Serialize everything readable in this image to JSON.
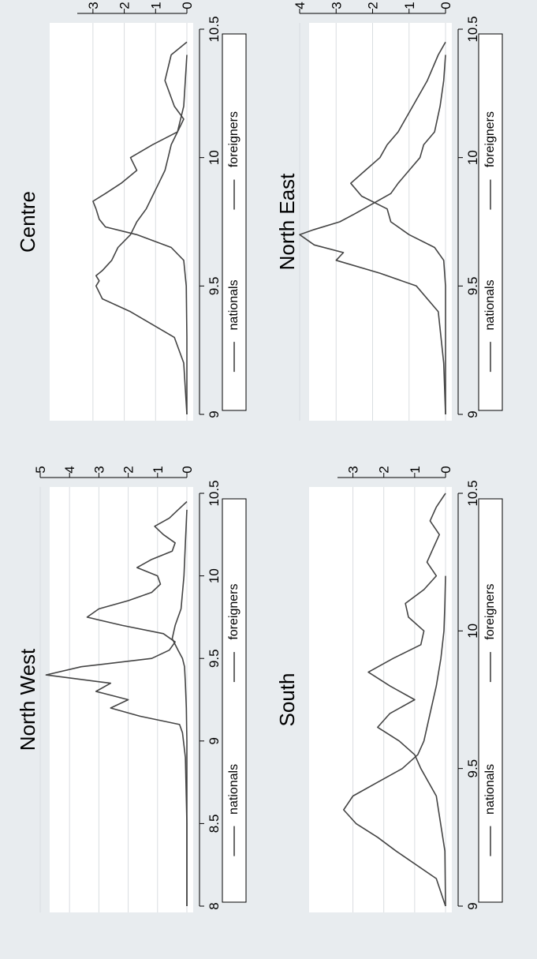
{
  "figure": {
    "orientation": "rotated 90 degrees counter-clockwise",
    "colors": {
      "outer_background": "#e8ecef",
      "plot_background": "#ffffff",
      "gridline": "#d9dde0",
      "line": "#444444"
    }
  },
  "chart_data": [
    {
      "type": "line",
      "title": "North West",
      "xlim": [
        8,
        10.5
      ],
      "ylim": [
        0,
        5
      ],
      "x_ticks": [
        "8",
        "8.5",
        "9",
        "9.5",
        "10",
        "10.5"
      ],
      "y_ticks": [
        "0",
        "1",
        "2",
        "3",
        "4",
        "5"
      ],
      "grid": true,
      "legend": {
        "position": "bottom",
        "entries": [
          "nationals",
          "foreigners"
        ]
      },
      "series": [
        {
          "name": "nationals",
          "x": [
            8.0,
            8.5,
            9.0,
            9.2,
            9.35,
            9.45,
            9.5,
            9.55,
            9.62,
            9.7,
            9.8,
            10.0,
            10.2,
            10.4
          ],
          "y": [
            0.0,
            0.0,
            0.0,
            0.02,
            0.05,
            0.08,
            0.15,
            0.3,
            0.5,
            0.4,
            0.2,
            0.1,
            0.05,
            0.0
          ]
        },
        {
          "name": "foreigners",
          "x": [
            8.0,
            8.5,
            8.9,
            9.05,
            9.1,
            9.15,
            9.2,
            9.25,
            9.3,
            9.35,
            9.4,
            9.45,
            9.5,
            9.55,
            9.6,
            9.65,
            9.7,
            9.75,
            9.8,
            9.85,
            9.9,
            9.95,
            10.0,
            10.05,
            10.1,
            10.15,
            10.2,
            10.25,
            10.3,
            10.35,
            10.4,
            10.45
          ],
          "y": [
            0.0,
            0.0,
            0.05,
            0.15,
            0.25,
            1.6,
            2.6,
            2.0,
            3.1,
            2.6,
            4.8,
            3.6,
            1.2,
            0.6,
            0.4,
            0.8,
            2.2,
            3.4,
            3.0,
            2.0,
            1.2,
            0.9,
            1.0,
            1.7,
            1.2,
            0.5,
            0.4,
            0.8,
            1.1,
            0.6,
            0.3,
            0.0
          ]
        }
      ]
    },
    {
      "type": "line",
      "title": "North East",
      "xlim": [
        9,
        10.5
      ],
      "ylim": [
        0,
        4
      ],
      "x_ticks": [
        "9",
        "9.5",
        "10",
        "10.5"
      ],
      "y_ticks": [
        "0",
        "1",
        "2",
        "3",
        "4"
      ],
      "grid": true,
      "legend": {
        "position": "bottom",
        "entries": [
          "nationals",
          "foreigners"
        ]
      },
      "series": [
        {
          "name": "nationals",
          "x": [
            9.0,
            9.2,
            9.4,
            9.5,
            9.55,
            9.6,
            9.63,
            9.66,
            9.7,
            9.72,
            9.75,
            9.78,
            9.82,
            9.86,
            9.9,
            9.95,
            10.0,
            10.05,
            10.1,
            10.2,
            10.3,
            10.4
          ],
          "y": [
            0.0,
            0.05,
            0.2,
            0.8,
            1.8,
            3.0,
            2.8,
            3.6,
            4.0,
            3.6,
            2.9,
            2.5,
            2.0,
            1.5,
            1.3,
            1.0,
            0.7,
            0.6,
            0.3,
            0.15,
            0.05,
            0.0
          ]
        },
        {
          "name": "foreigners",
          "x": [
            9.0,
            9.3,
            9.5,
            9.6,
            9.65,
            9.7,
            9.75,
            9.8,
            9.85,
            9.9,
            9.95,
            10.0,
            10.05,
            10.1,
            10.15,
            10.2,
            10.3,
            10.4,
            10.45
          ],
          "y": [
            0.0,
            0.0,
            0.0,
            0.05,
            0.3,
            1.0,
            1.5,
            1.6,
            2.3,
            2.6,
            2.2,
            1.8,
            1.6,
            1.3,
            1.1,
            0.9,
            0.5,
            0.2,
            0.0
          ]
        }
      ]
    },
    {
      "type": "line",
      "title": "Centre",
      "xlim": [
        9,
        10.5
      ],
      "ylim": [
        0,
        3.5
      ],
      "x_ticks": [
        "9",
        "9.5",
        "10",
        "10.5"
      ],
      "y_ticks": [
        "0",
        "1",
        "2",
        "3"
      ],
      "grid": true,
      "legend": {
        "position": "bottom",
        "entries": [
          "nationals",
          "foreigners"
        ]
      },
      "series": [
        {
          "name": "nationals",
          "x": [
            9.0,
            9.2,
            9.3,
            9.4,
            9.45,
            9.5,
            9.52,
            9.54,
            9.56,
            9.6,
            9.65,
            9.7,
            9.75,
            9.8,
            9.85,
            9.9,
            9.95,
            10.0,
            10.05,
            10.1,
            10.2,
            10.3,
            10.4
          ],
          "y": [
            0.0,
            0.1,
            0.4,
            1.8,
            2.7,
            2.9,
            2.8,
            2.9,
            2.7,
            2.4,
            2.2,
            1.8,
            1.6,
            1.3,
            1.1,
            0.9,
            0.7,
            0.6,
            0.5,
            0.3,
            0.1,
            0.05,
            0.0
          ]
        },
        {
          "name": "foreigners",
          "x": [
            9.0,
            9.3,
            9.5,
            9.6,
            9.65,
            9.7,
            9.73,
            9.76,
            9.8,
            9.83,
            9.86,
            9.9,
            9.95,
            10.0,
            10.05,
            10.1,
            10.15,
            10.2,
            10.3,
            10.4,
            10.45
          ],
          "y": [
            0.0,
            0.0,
            0.02,
            0.1,
            0.5,
            1.6,
            2.6,
            2.8,
            2.9,
            3.0,
            2.6,
            2.1,
            1.6,
            1.8,
            1.1,
            0.3,
            0.1,
            0.4,
            0.7,
            0.5,
            0.0
          ]
        }
      ]
    },
    {
      "type": "line",
      "title": "South",
      "xlim": [
        9,
        10.5
      ],
      "ylim": [
        0,
        3.5
      ],
      "x_ticks": [
        "9",
        "9.5",
        "10",
        "10.5"
      ],
      "y_ticks": [
        "0",
        "1",
        "2",
        "3"
      ],
      "grid": true,
      "legend": {
        "position": "bottom",
        "entries": [
          "nationals",
          "foreigners"
        ]
      },
      "series": [
        {
          "name": "nationals",
          "x": [
            9.0,
            9.1,
            9.2,
            9.25,
            9.3,
            9.35,
            9.4,
            9.45,
            9.5,
            9.55,
            9.6,
            9.7,
            9.8,
            9.9,
            10.0,
            10.1,
            10.2
          ],
          "y": [
            0.0,
            0.3,
            1.6,
            2.2,
            2.9,
            3.3,
            3.0,
            2.2,
            1.4,
            0.9,
            0.7,
            0.5,
            0.3,
            0.15,
            0.05,
            0.02,
            0.0
          ]
        },
        {
          "name": "foreigners",
          "x": [
            9.0,
            9.2,
            9.4,
            9.5,
            9.55,
            9.6,
            9.65,
            9.7,
            9.75,
            9.8,
            9.85,
            9.9,
            9.95,
            10.0,
            10.05,
            10.1,
            10.15,
            10.2,
            10.25,
            10.3,
            10.35,
            10.4,
            10.45,
            10.5
          ],
          "y": [
            0.0,
            0.02,
            0.3,
            0.8,
            1.0,
            1.5,
            2.2,
            1.8,
            1.0,
            1.8,
            2.5,
            1.7,
            0.8,
            0.7,
            1.2,
            1.3,
            0.7,
            0.3,
            0.6,
            0.4,
            0.2,
            0.5,
            0.3,
            0.0
          ]
        }
      ]
    }
  ]
}
